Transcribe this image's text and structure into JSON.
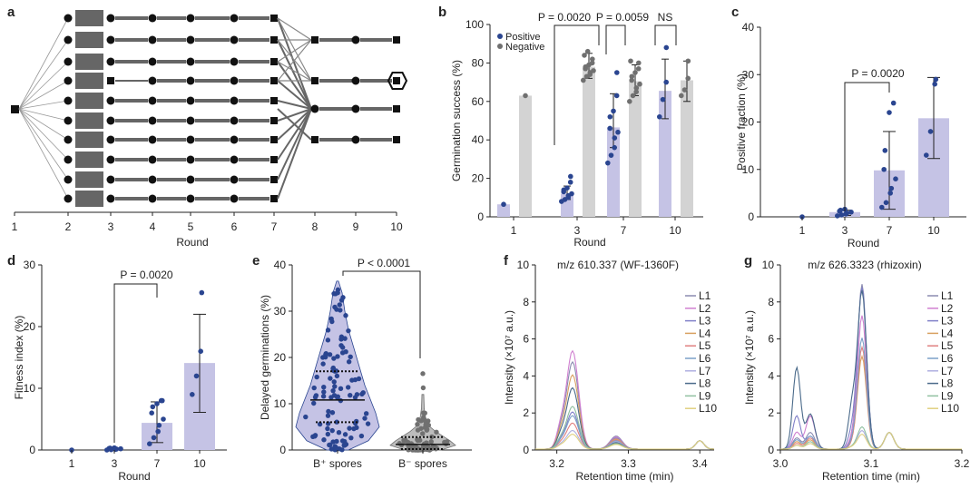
{
  "panel_labels": [
    "a",
    "b",
    "c",
    "d",
    "e",
    "f",
    "g"
  ],
  "watermark": "知乎 @百奥智汇生物",
  "panel_a": {
    "xlabel": "Round",
    "ticks": [
      "1",
      "2",
      "3",
      "4",
      "5",
      "6",
      "7",
      "8",
      "9",
      "10"
    ]
  },
  "chart_data": [
    {
      "id": "b",
      "type": "bar",
      "ylabel": "Germination success (%)",
      "xlabel": "Round",
      "categories": [
        "1",
        "3",
        "7",
        "10"
      ],
      "ylim": [
        0,
        100
      ],
      "yticks": [
        0,
        20,
        40,
        60,
        80,
        100
      ],
      "series": [
        {
          "name": "Positive",
          "color": "#2a4590",
          "bar_color": "#c5c3e5",
          "values": [
            6.5,
            12,
            46.5,
            65.5
          ],
          "err_low": [
            null,
            9,
            36,
            51
          ],
          "err_high": [
            null,
            16,
            64,
            82
          ],
          "points": [
            [
              6.5
            ],
            [
              8,
              9,
              10,
              11,
              12,
              13,
              14,
              15,
              18,
              21
            ],
            [
              28,
              32,
              36,
              41,
              44,
              46,
              52,
              55,
              63,
              75
            ],
            [
              52,
              61,
              70,
              88
            ]
          ]
        },
        {
          "name": "Negative",
          "color": "#707070",
          "bar_color": "#d3d3d3",
          "values": [
            63,
            78,
            70.5,
            71
          ],
          "err_low": [
            null,
            72,
            63,
            60
          ],
          "err_high": [
            null,
            85,
            79,
            81
          ],
          "points": [
            [
              63
            ],
            [
              71,
              73,
              74,
              75,
              76,
              77,
              78,
              79,
              80,
              82,
              84,
              86
            ],
            [
              60,
              63,
              65,
              67,
              69,
              71,
              73,
              75,
              77,
              80,
              81
            ],
            [
              63,
              66,
              72,
              81
            ]
          ]
        }
      ],
      "annotations": [
        "P = 0.0020",
        "P = 0.0059",
        "NS"
      ]
    },
    {
      "id": "c",
      "type": "bar",
      "ylabel": "Positive fraction (%)",
      "xlabel": "Round",
      "categories": [
        "1",
        "3",
        "7",
        "10"
      ],
      "ylim": [
        0,
        40
      ],
      "yticks": [
        0,
        10,
        20,
        30,
        40
      ],
      "values": [
        0,
        1,
        9.8,
        20.8
      ],
      "err_low": [
        null,
        0.3,
        1.6,
        12.3
      ],
      "err_high": [
        null,
        1.4,
        18,
        29.4
      ],
      "points": [
        [
          0
        ],
        [
          0.2,
          0.4,
          0.6,
          0.8,
          1.0,
          1.2,
          1.4,
          1.6
        ],
        [
          2,
          3,
          5,
          6,
          8,
          10,
          14,
          22,
          24
        ],
        [
          13,
          18,
          28,
          29
        ]
      ],
      "annotations": [
        "P = 0.0020"
      ]
    },
    {
      "id": "d",
      "type": "bar",
      "ylabel": "Fitness index (%)",
      "xlabel": "Round",
      "categories": [
        "1",
        "3",
        "7",
        "10"
      ],
      "ylim": [
        0,
        30
      ],
      "yticks": [
        0,
        10,
        20,
        30
      ],
      "values": [
        0,
        0.1,
        4.4,
        14.1
      ],
      "err_low": [
        null,
        0,
        1.2,
        6.1
      ],
      "err_high": [
        null,
        0.2,
        7.8,
        22
      ],
      "points": [
        [
          0
        ],
        [
          0,
          0.05,
          0.1,
          0.15,
          0.2,
          0.25,
          0.3,
          0.35
        ],
        [
          1,
          2,
          3,
          4,
          5,
          6,
          7,
          7.5,
          8,
          8
        ],
        [
          9,
          12,
          16,
          25.5
        ]
      ],
      "annotations": [
        "P = 0.0020"
      ]
    },
    {
      "id": "e",
      "type": "scatter",
      "ylabel": "Delayed germinations (%)",
      "categories": [
        "B⁺ spores",
        "B⁻ spores"
      ],
      "ylim": [
        0,
        40
      ],
      "yticks": [
        0,
        10,
        20,
        30,
        40
      ],
      "medians": [
        10.8,
        1.2
      ],
      "quartiles": [
        [
          6,
          17
        ],
        [
          0.2,
          2.8
        ]
      ],
      "annotations": [
        "P < 0.0001"
      ]
    },
    {
      "id": "f",
      "type": "line",
      "title": "m/z 610.337 (WF-1360F)",
      "ylabel": "Intensity (×10⁷ a.u.)",
      "xlabel": "Retention time (min)",
      "xticks": [
        "3.2",
        "3.3",
        "3.4"
      ],
      "xlim": [
        3.17,
        3.42
      ],
      "ylim": [
        0,
        10
      ],
      "yticks": [
        0,
        2,
        4,
        6,
        8,
        10
      ],
      "series": [
        {
          "name": "L1",
          "color": "#8a8ab0",
          "peak": 4.7
        },
        {
          "name": "L2",
          "color": "#d080d0",
          "peak": 5.3
        },
        {
          "name": "L3",
          "color": "#8080c8",
          "peak": 2.0
        },
        {
          "name": "L4",
          "color": "#d8a060",
          "peak": 4.0
        },
        {
          "name": "L5",
          "color": "#e08080",
          "peak": 1.4
        },
        {
          "name": "L6",
          "color": "#7aa0c8",
          "peak": 1.8
        },
        {
          "name": "L7",
          "color": "#b0b0e0",
          "peak": 1.0
        },
        {
          "name": "L8",
          "color": "#4a6a8a",
          "peak": 3.3
        },
        {
          "name": "L9",
          "color": "#90c0a0",
          "peak": 2.3
        },
        {
          "name": "L10",
          "color": "#e0d080",
          "peak": 0.8
        }
      ]
    },
    {
      "id": "g",
      "type": "line",
      "title": "m/z 626.3323 (rhizoxin)",
      "ylabel": "Intensity (×10⁷ a.u.)",
      "xlabel": "Retention time (min)",
      "xticks": [
        "3.0",
        "3.1",
        "3.2"
      ],
      "xlim": [
        3.0,
        3.2
      ],
      "ylim": [
        0,
        10
      ],
      "yticks": [
        0,
        2,
        4,
        6,
        8,
        10
      ],
      "series": [
        {
          "name": "L1",
          "color": "#8a8ab0",
          "peak": 8.9
        },
        {
          "name": "L2",
          "color": "#d080d0",
          "peak": 7.2
        },
        {
          "name": "L3",
          "color": "#8080c8",
          "peak": 8.7
        },
        {
          "name": "L4",
          "color": "#d8a060",
          "peak": 5.0
        },
        {
          "name": "L5",
          "color": "#e08080",
          "peak": 5.5
        },
        {
          "name": "L6",
          "color": "#7aa0c8",
          "peak": 6.0
        },
        {
          "name": "L7",
          "color": "#b0b0e0",
          "peak": 1.0
        },
        {
          "name": "L8",
          "color": "#4a6a8a",
          "peak": 8.5
        },
        {
          "name": "L9",
          "color": "#90c0a0",
          "peak": 1.2
        },
        {
          "name": "L10",
          "color": "#e0d080",
          "peak": 0.8
        }
      ]
    }
  ]
}
